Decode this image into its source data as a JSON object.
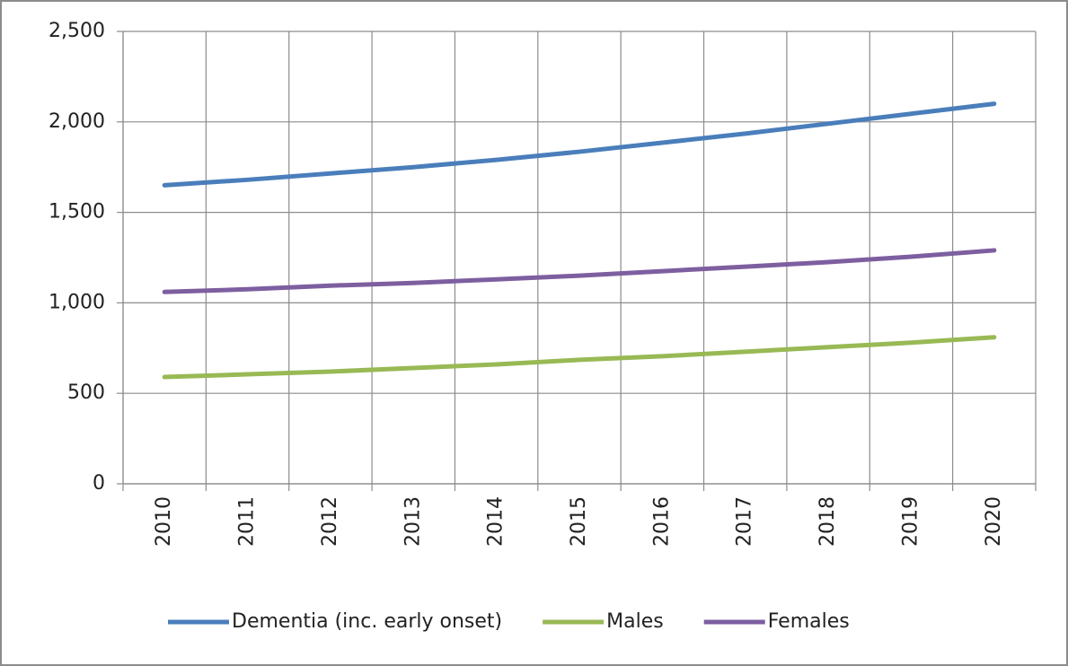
{
  "chart_data": {
    "type": "line",
    "categories": [
      "2010",
      "2011",
      "2012",
      "2013",
      "2014",
      "2015",
      "2016",
      "2017",
      "2018",
      "2019",
      "2020"
    ],
    "series": [
      {
        "name": "Dementia (inc. early onset)",
        "color": "#4a7ebb",
        "values": [
          1650,
          1680,
          1715,
          1750,
          1790,
          1835,
          1885,
          1935,
          1990,
          2045,
          2100
        ]
      },
      {
        "name": "Males",
        "color": "#98b954",
        "values": [
          590,
          605,
          620,
          640,
          660,
          685,
          705,
          730,
          755,
          780,
          810
        ]
      },
      {
        "name": "Females",
        "color": "#7d5fa0",
        "values": [
          1060,
          1075,
          1095,
          1110,
          1130,
          1150,
          1175,
          1200,
          1225,
          1255,
          1290
        ]
      }
    ],
    "ylim": [
      0,
      2500
    ],
    "yticks": [
      0,
      500,
      {
        "value": 1000,
        "label": "1,000"
      },
      {
        "value": 1500,
        "label": "1,500"
      },
      {
        "value": 2000,
        "label": "2,000"
      },
      {
        "value": 2500,
        "label": "2,500"
      }
    ],
    "grid": true,
    "legend": "bottom"
  }
}
